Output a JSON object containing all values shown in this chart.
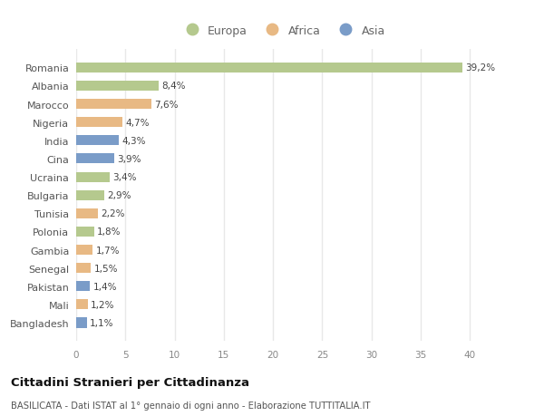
{
  "countries": [
    "Romania",
    "Albania",
    "Marocco",
    "Nigeria",
    "India",
    "Cina",
    "Ucraina",
    "Bulgaria",
    "Tunisia",
    "Polonia",
    "Gambia",
    "Senegal",
    "Pakistan",
    "Mali",
    "Bangladesh"
  ],
  "values": [
    39.2,
    8.4,
    7.6,
    4.7,
    4.3,
    3.9,
    3.4,
    2.9,
    2.2,
    1.8,
    1.7,
    1.5,
    1.4,
    1.2,
    1.1
  ],
  "labels": [
    "39,2%",
    "8,4%",
    "7,6%",
    "4,7%",
    "4,3%",
    "3,9%",
    "3,4%",
    "2,9%",
    "2,2%",
    "1,8%",
    "1,7%",
    "1,5%",
    "1,4%",
    "1,2%",
    "1,1%"
  ],
  "continents": [
    "Europa",
    "Europa",
    "Africa",
    "Africa",
    "Asia",
    "Asia",
    "Europa",
    "Europa",
    "Africa",
    "Europa",
    "Africa",
    "Africa",
    "Asia",
    "Africa",
    "Asia"
  ],
  "colors": {
    "Europa": "#b5c98e",
    "Africa": "#e8b984",
    "Asia": "#7a9cc8"
  },
  "title": "Cittadini Stranieri per Cittadinanza",
  "subtitle": "BASILICATA - Dati ISTAT al 1° gennaio di ogni anno - Elaborazione TUTTITALIA.IT",
  "xlim": [
    0,
    42
  ],
  "xticks": [
    0,
    5,
    10,
    15,
    20,
    25,
    30,
    35,
    40
  ],
  "background_color": "#ffffff",
  "grid_color": "#e8e8e8",
  "bar_height": 0.55
}
